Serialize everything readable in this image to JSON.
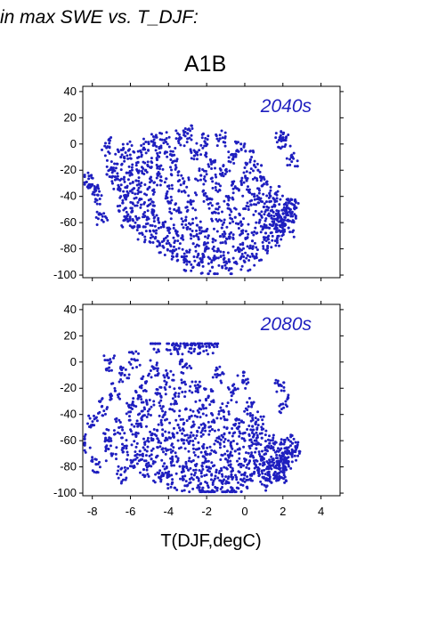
{
  "header": {
    "text": "in max SWE vs. T_DJF:"
  },
  "scenario": "A1B",
  "xlabel": "T(DJF,degC)",
  "colors": {
    "points": "#1f1fbf",
    "axes": "#000000"
  },
  "chart_data": [
    {
      "type": "scatter",
      "panel_label": "2040s",
      "xlim": [
        -8.5,
        5
      ],
      "ylim": [
        -102,
        44
      ],
      "xticks": [
        -8,
        -6,
        -4,
        -2,
        0,
        2,
        4
      ],
      "yticks": [
        40,
        20,
        0,
        -20,
        -40,
        -60,
        -80,
        -100
      ],
      "xtick_labels_shown": false,
      "points": [
        [
          -8.3,
          -29
        ],
        [
          -8.0,
          -31
        ],
        [
          -7.7,
          -39
        ],
        [
          -7.5,
          -58
        ],
        [
          -7.2,
          -2
        ],
        [
          -7.0,
          -18
        ],
        [
          -6.8,
          -25
        ],
        [
          -6.6,
          -33
        ],
        [
          -6.5,
          -10
        ],
        [
          -6.4,
          -45
        ],
        [
          -6.3,
          -58
        ],
        [
          -6.2,
          -22
        ],
        [
          -6.1,
          -5
        ],
        [
          -6.0,
          -36
        ],
        [
          -5.9,
          -51
        ],
        [
          -5.8,
          -63
        ],
        [
          -5.7,
          -28
        ],
        [
          -5.6,
          -14
        ],
        [
          -5.5,
          -42
        ],
        [
          -5.4,
          -68
        ],
        [
          -5.3,
          -3
        ],
        [
          -5.2,
          -20
        ],
        [
          -5.1,
          -56
        ],
        [
          -5.0,
          -33
        ],
        [
          -4.9,
          2
        ],
        [
          -4.8,
          -47
        ],
        [
          -4.7,
          -72
        ],
        [
          -4.6,
          -12
        ],
        [
          -4.5,
          -60
        ],
        [
          -4.4,
          -25
        ],
        [
          -4.3,
          -78
        ],
        [
          -4.2,
          3
        ],
        [
          -4.1,
          -38
        ],
        [
          -4.0,
          -66
        ],
        [
          -3.9,
          -8
        ],
        [
          -3.8,
          -82
        ],
        [
          -3.7,
          -50
        ],
        [
          -3.6,
          -18
        ],
        [
          -3.5,
          -70
        ],
        [
          -3.4,
          5
        ],
        [
          -3.3,
          -86
        ],
        [
          -3.2,
          -30
        ],
        [
          -3.1,
          -58
        ],
        [
          -3.0,
          8
        ],
        [
          -2.9,
          -90
        ],
        [
          -2.8,
          -44
        ],
        [
          -2.7,
          -76
        ],
        [
          -2.6,
          -6
        ],
        [
          -2.5,
          -62
        ],
        [
          -2.4,
          -92
        ],
        [
          -2.3,
          -24
        ],
        [
          -2.2,
          -84
        ],
        [
          -2.1,
          2
        ],
        [
          -2.0,
          -40
        ],
        [
          -1.9,
          -70
        ],
        [
          -1.8,
          -12
        ],
        [
          -1.7,
          -94
        ],
        [
          -1.6,
          -52
        ],
        [
          -1.5,
          -30
        ],
        [
          -1.4,
          -80
        ],
        [
          -1.3,
          4
        ],
        [
          -1.2,
          -64
        ],
        [
          -1.1,
          -88
        ],
        [
          -1.0,
          -20
        ],
        [
          -0.9,
          -46
        ],
        [
          -0.8,
          -72
        ],
        [
          -0.7,
          -95
        ],
        [
          -0.6,
          -8
        ],
        [
          -0.5,
          -56
        ],
        [
          -0.4,
          -34
        ],
        [
          -0.3,
          -82
        ],
        [
          -0.2,
          0
        ],
        [
          -0.1,
          -66
        ],
        [
          0.0,
          -90
        ],
        [
          0.1,
          -28
        ],
        [
          0.2,
          -50
        ],
        [
          0.3,
          -12
        ],
        [
          0.4,
          -74
        ],
        [
          0.5,
          -40
        ],
        [
          0.6,
          -86
        ],
        [
          0.7,
          -20
        ],
        [
          0.8,
          -58
        ],
        [
          0.9,
          -32
        ],
        [
          1.0,
          -48
        ],
        [
          1.1,
          -68
        ],
        [
          1.2,
          -78
        ],
        [
          1.3,
          -44
        ],
        [
          1.4,
          -62
        ],
        [
          1.5,
          -52
        ],
        [
          1.6,
          -38
        ],
        [
          1.7,
          -72
        ],
        [
          1.8,
          -66
        ],
        [
          1.9,
          -56
        ],
        [
          2.0,
          -60
        ],
        [
          2.1,
          -46
        ],
        [
          2.2,
          -54
        ],
        [
          2.3,
          -64
        ],
        [
          2.4,
          -50
        ],
        [
          2.6,
          -49
        ],
        [
          1.8,
          3
        ],
        [
          2.1,
          3
        ],
        [
          2.5,
          -10
        ]
      ]
    },
    {
      "type": "scatter",
      "panel_label": "2080s",
      "xlim": [
        -8.5,
        5
      ],
      "ylim": [
        -102,
        44
      ],
      "xticks": [
        -8,
        -6,
        -4,
        -2,
        0,
        2,
        4
      ],
      "yticks": [
        40,
        20,
        0,
        -20,
        -40,
        -60,
        -80,
        -100
      ],
      "xtick_labels": [
        "-8",
        "-6",
        "-4",
        "-2",
        "0",
        "2",
        "4"
      ],
      "points": [
        [
          -8.4,
          -62
        ],
        [
          -8.0,
          -48
        ],
        [
          -7.8,
          -78
        ],
        [
          -7.5,
          -34
        ],
        [
          -7.3,
          -58
        ],
        [
          -7.1,
          -1
        ],
        [
          -7.0,
          -70
        ],
        [
          -6.8,
          -22
        ],
        [
          -6.6,
          -50
        ],
        [
          -6.5,
          -86
        ],
        [
          -6.3,
          -10
        ],
        [
          -6.2,
          -64
        ],
        [
          -6.0,
          -38
        ],
        [
          -5.9,
          -76
        ],
        [
          -5.8,
          2
        ],
        [
          -5.7,
          -54
        ],
        [
          -5.6,
          -28
        ],
        [
          -5.5,
          -68
        ],
        [
          -5.4,
          -44
        ],
        [
          -5.3,
          -82
        ],
        [
          -5.2,
          -16
        ],
        [
          -5.1,
          -60
        ],
        [
          -5.0,
          -36
        ],
        [
          -4.9,
          -74
        ],
        [
          -4.8,
          -4
        ],
        [
          -4.7,
          14
        ],
        [
          -4.6,
          -52
        ],
        [
          -4.5,
          -88
        ],
        [
          -4.4,
          -26
        ],
        [
          -4.3,
          -66
        ],
        [
          -4.2,
          -40
        ],
        [
          -4.1,
          -80
        ],
        [
          -4.0,
          -12
        ],
        [
          -3.9,
          -58
        ],
        [
          -3.8,
          -92
        ],
        [
          -3.7,
          -32
        ],
        [
          -3.6,
          -72
        ],
        [
          -3.5,
          -48
        ],
        [
          -3.4,
          -20
        ],
        [
          -3.3,
          -84
        ],
        [
          -3.2,
          -62
        ],
        [
          -3.1,
          -2
        ],
        [
          -3.0,
          -94
        ],
        [
          -2.9,
          -42
        ],
        [
          -2.8,
          -76
        ],
        [
          -2.7,
          -56
        ],
        [
          -2.6,
          -18
        ],
        [
          -2.5,
          -88
        ],
        [
          -2.4,
          -66
        ],
        [
          -2.3,
          -36
        ],
        [
          -2.2,
          -96
        ],
        [
          -2.1,
          -50
        ],
        [
          -2.0,
          -80
        ],
        [
          -1.9,
          -26
        ],
        [
          -1.8,
          -70
        ],
        [
          -1.7,
          -98
        ],
        [
          -1.6,
          -46
        ],
        [
          -1.5,
          -84
        ],
        [
          -1.4,
          -10
        ],
        [
          -1.3,
          -62
        ],
        [
          -1.2,
          -92
        ],
        [
          -1.1,
          -38
        ],
        [
          -1.0,
          -74
        ],
        [
          -0.9,
          -98
        ],
        [
          -0.8,
          -54
        ],
        [
          -0.7,
          -86
        ],
        [
          -0.6,
          -24
        ],
        [
          -0.5,
          -68
        ],
        [
          -0.4,
          -96
        ],
        [
          -0.3,
          -44
        ],
        [
          -0.2,
          -80
        ],
        [
          -0.1,
          -14
        ],
        [
          0.0,
          -60
        ],
        [
          0.1,
          -90
        ],
        [
          0.2,
          -34
        ],
        [
          0.3,
          -72
        ],
        [
          0.4,
          -52
        ],
        [
          0.5,
          -84
        ],
        [
          0.6,
          -66
        ],
        [
          0.7,
          -44
        ],
        [
          0.8,
          -78
        ],
        [
          0.9,
          -58
        ],
        [
          1.0,
          -88
        ],
        [
          1.1,
          -70
        ],
        [
          1.2,
          -80
        ],
        [
          1.3,
          -62
        ],
        [
          1.4,
          -92
        ],
        [
          1.5,
          -74
        ],
        [
          1.6,
          -84
        ],
        [
          1.7,
          -68
        ],
        [
          1.8,
          -78
        ],
        [
          1.9,
          -88
        ],
        [
          2.0,
          -72
        ],
        [
          2.1,
          -82
        ],
        [
          2.2,
          -66
        ],
        [
          2.3,
          -76
        ],
        [
          2.4,
          -70
        ],
        [
          2.5,
          -62
        ],
        [
          2.6,
          -68
        ],
        [
          -3.8,
          13
        ],
        [
          -3.4,
          12
        ],
        [
          -3.0,
          13
        ],
        [
          -2.6,
          13
        ],
        [
          -2.2,
          12
        ],
        [
          -1.7,
          13
        ],
        [
          1.8,
          -18
        ],
        [
          2.0,
          -32
        ]
      ]
    }
  ]
}
